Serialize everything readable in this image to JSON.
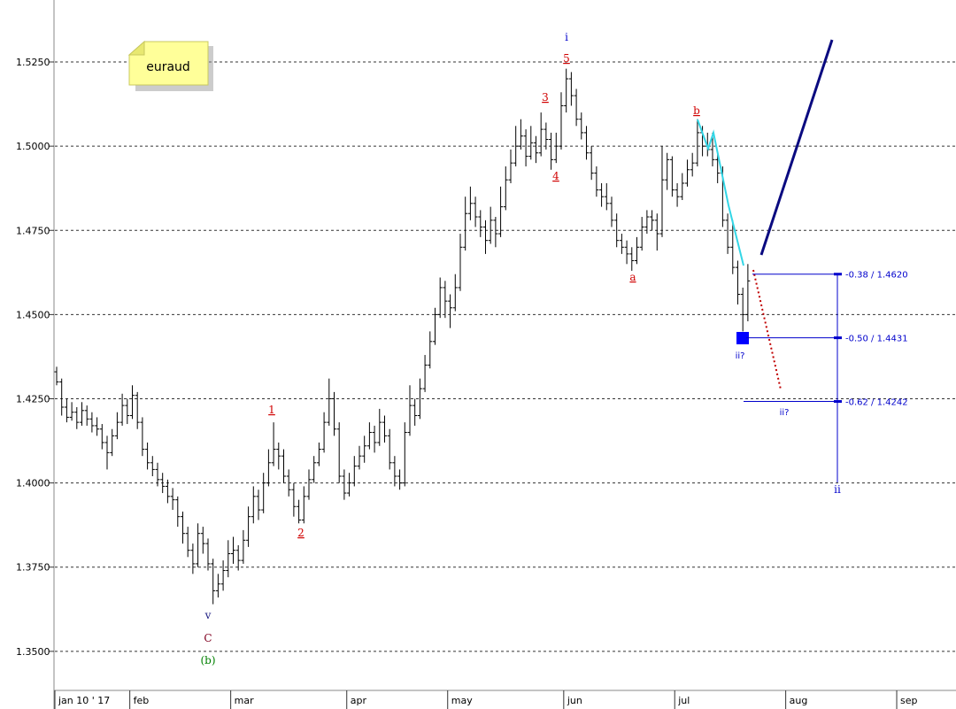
{
  "chart_data": {
    "type": "ohlc",
    "symbol": "euraud",
    "color": "#000000",
    "grid": true,
    "xlim": [
      -0.35,
      178.25
    ],
    "xticks": [
      {
        "value": -0.35,
        "label": "jan 10 ' 17"
      },
      {
        "value": 14.5,
        "label": "feb"
      },
      {
        "value": 34.5,
        "label": "mar"
      },
      {
        "value": 57.5,
        "label": "apr"
      },
      {
        "value": 77.5,
        "label": "may"
      },
      {
        "value": 100.5,
        "label": "jun"
      },
      {
        "value": 122.5,
        "label": "jul"
      },
      {
        "value": 144.5,
        "label": "aug"
      },
      {
        "value": 166.5,
        "label": "sep"
      }
    ],
    "ylim": [
      1.3384,
      1.5434
    ],
    "yticks": [
      {
        "value": 1.35,
        "label": "1.3500"
      },
      {
        "value": 1.375,
        "label": "1.3750"
      },
      {
        "value": 1.4,
        "label": "1.4000"
      },
      {
        "value": 1.425,
        "label": "1.4250"
      },
      {
        "value": 1.45,
        "label": "1.4500"
      },
      {
        "value": 1.475,
        "label": "1.4750"
      },
      {
        "value": 1.5,
        "label": "1.5000"
      },
      {
        "value": 1.525,
        "label": "1.5250"
      }
    ],
    "fib_levels": [
      {
        "value": 1.462,
        "label": "-0.38 / 1.4620"
      },
      {
        "value": 1.4431,
        "label": "-0.50 / 1.4431"
      },
      {
        "value": 1.4242,
        "label": "-0.62 / 1.4242"
      }
    ],
    "annotations": [
      "i",
      "5",
      "3",
      "4",
      "b",
      "a",
      "1",
      "2",
      "v",
      "C",
      "(b)",
      "ii?",
      "ii?",
      "ii"
    ],
    "bars": [
      [
        1.433,
        1.4345,
        1.429,
        1.43
      ],
      [
        1.43,
        1.431,
        1.42,
        1.4225
      ],
      [
        1.4225,
        1.425,
        1.418,
        1.4195
      ],
      [
        1.4195,
        1.424,
        1.4185,
        1.421
      ],
      [
        1.421,
        1.4225,
        1.416,
        1.418
      ],
      [
        1.418,
        1.424,
        1.417,
        1.4215
      ],
      [
        1.4215,
        1.423,
        1.417,
        1.419
      ],
      [
        1.419,
        1.421,
        1.415,
        1.417
      ],
      [
        1.417,
        1.4195,
        1.414,
        1.416
      ],
      [
        1.416,
        1.4175,
        1.41,
        1.412
      ],
      [
        1.412,
        1.414,
        1.404,
        1.409
      ],
      [
        1.409,
        1.416,
        1.408,
        1.414
      ],
      [
        1.414,
        1.421,
        1.413,
        1.418
      ],
      [
        1.418,
        1.4265,
        1.417,
        1.423
      ],
      [
        1.423,
        1.425,
        1.4175,
        1.42
      ],
      [
        1.42,
        1.429,
        1.419,
        1.426
      ],
      [
        1.426,
        1.427,
        1.416,
        1.418
      ],
      [
        1.418,
        1.4195,
        1.408,
        1.41
      ],
      [
        1.41,
        1.412,
        1.404,
        1.406
      ],
      [
        1.406,
        1.408,
        1.402,
        1.404
      ],
      [
        1.404,
        1.406,
        1.399,
        1.401
      ],
      [
        1.401,
        1.403,
        1.397,
        1.399
      ],
      [
        1.399,
        1.401,
        1.394,
        1.396
      ],
      [
        1.396,
        1.3985,
        1.392,
        1.395
      ],
      [
        1.395,
        1.396,
        1.387,
        1.39
      ],
      [
        1.39,
        1.3915,
        1.382,
        1.385
      ],
      [
        1.385,
        1.387,
        1.378,
        1.38
      ],
      [
        1.38,
        1.382,
        1.373,
        1.376
      ],
      [
        1.376,
        1.388,
        1.375,
        1.385
      ],
      [
        1.385,
        1.387,
        1.379,
        1.382
      ],
      [
        1.382,
        1.3835,
        1.374,
        1.376
      ],
      [
        1.376,
        1.3775,
        1.364,
        1.368
      ],
      [
        1.368,
        1.373,
        1.366,
        1.37
      ],
      [
        1.37,
        1.377,
        1.368,
        1.374
      ],
      [
        1.374,
        1.383,
        1.372,
        1.379
      ],
      [
        1.379,
        1.384,
        1.376,
        1.38
      ],
      [
        1.38,
        1.3815,
        1.374,
        1.377
      ],
      [
        1.377,
        1.386,
        1.376,
        1.383
      ],
      [
        1.383,
        1.393,
        1.381,
        1.39
      ],
      [
        1.39,
        1.399,
        1.388,
        1.396
      ],
      [
        1.396,
        1.398,
        1.389,
        1.392
      ],
      [
        1.392,
        1.403,
        1.391,
        1.4
      ],
      [
        1.4,
        1.41,
        1.399,
        1.406
      ],
      [
        1.406,
        1.418,
        1.405,
        1.41
      ],
      [
        1.41,
        1.412,
        1.404,
        1.408
      ],
      [
        1.408,
        1.41,
        1.4,
        1.402
      ],
      [
        1.402,
        1.404,
        1.396,
        1.398
      ],
      [
        1.398,
        1.4,
        1.39,
        1.393
      ],
      [
        1.393,
        1.395,
        1.388,
        1.389
      ],
      [
        1.389,
        1.399,
        1.388,
        1.396
      ],
      [
        1.396,
        1.404,
        1.395,
        1.401
      ],
      [
        1.401,
        1.408,
        1.4,
        1.406
      ],
      [
        1.406,
        1.412,
        1.405,
        1.41
      ],
      [
        1.41,
        1.421,
        1.409,
        1.418
      ],
      [
        1.418,
        1.431,
        1.417,
        1.425
      ],
      [
        1.425,
        1.427,
        1.414,
        1.416
      ],
      [
        1.416,
        1.418,
        1.4,
        1.402
      ],
      [
        1.402,
        1.404,
        1.395,
        1.397
      ],
      [
        1.397,
        1.403,
        1.396,
        1.4
      ],
      [
        1.4,
        1.408,
        1.399,
        1.405
      ],
      [
        1.405,
        1.411,
        1.404,
        1.408
      ],
      [
        1.408,
        1.414,
        1.406,
        1.411
      ],
      [
        1.411,
        1.418,
        1.41,
        1.415
      ],
      [
        1.415,
        1.417,
        1.409,
        1.412
      ],
      [
        1.412,
        1.422,
        1.411,
        1.418
      ],
      [
        1.418,
        1.42,
        1.412,
        1.414
      ],
      [
        1.414,
        1.416,
        1.404,
        1.406
      ],
      [
        1.406,
        1.408,
        1.399,
        1.402
      ],
      [
        1.402,
        1.404,
        1.398,
        1.4
      ],
      [
        1.4,
        1.418,
        1.399,
        1.415
      ],
      [
        1.415,
        1.429,
        1.414,
        1.423
      ],
      [
        1.423,
        1.425,
        1.417,
        1.42
      ],
      [
        1.42,
        1.431,
        1.419,
        1.428
      ],
      [
        1.428,
        1.438,
        1.427,
        1.435
      ],
      [
        1.435,
        1.445,
        1.434,
        1.442
      ],
      [
        1.442,
        1.452,
        1.441,
        1.45
      ],
      [
        1.45,
        1.461,
        1.449,
        1.458
      ],
      [
        1.458,
        1.46,
        1.449,
        1.454
      ],
      [
        1.454,
        1.456,
        1.446,
        1.452
      ],
      [
        1.452,
        1.462,
        1.451,
        1.458
      ],
      [
        1.458,
        1.474,
        1.457,
        1.47
      ],
      [
        1.47,
        1.485,
        1.469,
        1.48
      ],
      [
        1.48,
        1.488,
        1.478,
        1.483
      ],
      [
        1.483,
        1.485,
        1.476,
        1.479
      ],
      [
        1.479,
        1.481,
        1.473,
        1.476
      ],
      [
        1.476,
        1.478,
        1.468,
        1.472
      ],
      [
        1.472,
        1.482,
        1.471,
        1.478
      ],
      [
        1.478,
        1.479,
        1.47,
        1.474
      ],
      [
        1.474,
        1.488,
        1.473,
        1.482
      ],
      [
        1.482,
        1.494,
        1.481,
        1.49
      ],
      [
        1.49,
        1.499,
        1.489,
        1.495
      ],
      [
        1.495,
        1.506,
        1.494,
        1.5
      ],
      [
        1.5,
        1.508,
        1.499,
        1.503
      ],
      [
        1.503,
        1.505,
        1.494,
        1.497
      ],
      [
        1.497,
        1.506,
        1.496,
        1.501
      ],
      [
        1.501,
        1.503,
        1.495,
        1.498
      ],
      [
        1.498,
        1.51,
        1.497,
        1.505
      ],
      [
        1.505,
        1.507,
        1.499,
        1.502
      ],
      [
        1.502,
        1.504,
        1.493,
        1.496
      ],
      [
        1.496,
        1.504,
        1.495,
        1.5
      ],
      [
        1.5,
        1.516,
        1.499,
        1.512
      ],
      [
        1.512,
        1.523,
        1.51,
        1.52
      ],
      [
        1.52,
        1.522,
        1.512,
        1.515
      ],
      [
        1.515,
        1.517,
        1.506,
        1.508
      ],
      [
        1.508,
        1.51,
        1.502,
        1.504
      ],
      [
        1.504,
        1.506,
        1.496,
        1.498
      ],
      [
        1.498,
        1.5,
        1.49,
        1.492
      ],
      [
        1.492,
        1.494,
        1.485,
        1.487
      ],
      [
        1.487,
        1.489,
        1.482,
        1.485
      ],
      [
        1.485,
        1.489,
        1.481,
        1.483
      ],
      [
        1.483,
        1.485,
        1.476,
        1.478
      ],
      [
        1.478,
        1.48,
        1.47,
        1.472
      ],
      [
        1.472,
        1.474,
        1.468,
        1.47
      ],
      [
        1.47,
        1.472,
        1.465,
        1.468
      ],
      [
        1.468,
        1.47,
        1.463,
        1.466
      ],
      [
        1.466,
        1.473,
        1.465,
        1.47
      ],
      [
        1.47,
        1.479,
        1.469,
        1.476
      ],
      [
        1.476,
        1.481,
        1.474,
        1.479
      ],
      [
        1.479,
        1.481,
        1.475,
        1.478
      ],
      [
        1.478,
        1.48,
        1.469,
        1.474
      ],
      [
        1.474,
        1.5,
        1.473,
        1.49
      ],
      [
        1.49,
        1.498,
        1.487,
        1.496
      ],
      [
        1.496,
        1.497,
        1.485,
        1.487
      ],
      [
        1.487,
        1.489,
        1.482,
        1.485
      ],
      [
        1.485,
        1.492,
        1.484,
        1.489
      ],
      [
        1.489,
        1.496,
        1.488,
        1.493
      ],
      [
        1.493,
        1.498,
        1.491,
        1.495
      ],
      [
        1.495,
        1.508,
        1.494,
        1.504
      ],
      [
        1.504,
        1.506,
        1.497,
        1.5
      ],
      [
        1.5,
        1.504,
        1.497,
        1.499
      ],
      [
        1.499,
        1.504,
        1.494,
        1.496
      ],
      [
        1.496,
        1.498,
        1.489,
        1.492
      ],
      [
        1.492,
        1.494,
        1.476,
        1.478
      ],
      [
        1.478,
        1.48,
        1.468,
        1.47
      ],
      [
        1.47,
        1.478,
        1.462,
        1.464
      ],
      [
        1.464,
        1.466,
        1.453,
        1.456
      ],
      [
        1.456,
        1.458,
        1.445,
        1.45
      ],
      [
        1.45,
        1.465,
        1.448,
        1.46
      ]
    ]
  }
}
